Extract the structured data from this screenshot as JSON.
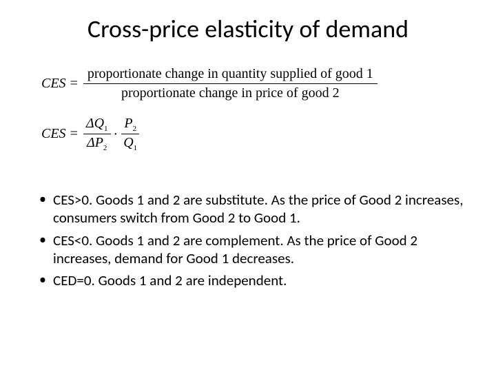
{
  "title": "Cross-price elasticity of demand",
  "formula1": {
    "lhs": "CES",
    "numerator": "proportionate change in quantity supplied of good 1",
    "denominator": "proportionate change in price of good 2"
  },
  "formula2": {
    "lhs": "CES",
    "frac1_num_sym": "ΔQ",
    "frac1_num_sub": "1",
    "frac1_den_sym": "ΔP",
    "frac1_den_sub": "2",
    "frac2_num_sym": "P",
    "frac2_num_sub": "2",
    "frac2_den_sym": "Q",
    "frac2_den_sub": "1"
  },
  "bullets": [
    "CES>0. Goods 1 and 2 are substitute. As the price of Good 2 increases, consumers switch from Good 2 to Good 1.",
    "CES<0. Goods 1 and 2 are complement. As the price of Good 2 increases, demand for Good 1 decreases.",
    "CED=0. Goods 1 and 2 are independent."
  ],
  "styling": {
    "background_color": "#ffffff",
    "text_color": "#000000",
    "title_fontsize": 36,
    "body_fontsize": 21,
    "formula_fontsize": 20,
    "title_font": "Calibri",
    "formula_font": "Times New Roman",
    "slide_width": 720,
    "slide_height": 540
  }
}
